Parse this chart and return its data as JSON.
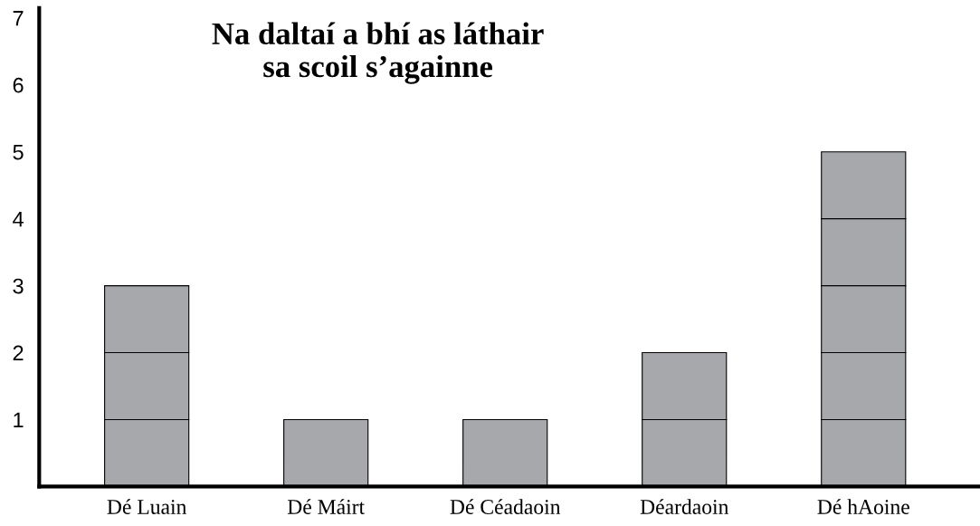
{
  "chart_data": {
    "type": "bar",
    "title": "Na daltaí a bhí as láthair\nsa scoil s’againne",
    "categories": [
      "Dé Luain",
      "Dé Máirt",
      "Dé Céadaoin",
      "Déardaoin",
      "Dé hAoine"
    ],
    "values": [
      3,
      1,
      1,
      2,
      5
    ],
    "color": "#a7a8ac",
    "ylim": [
      0,
      7.15
    ],
    "yticks": [
      1,
      2,
      3,
      4,
      5,
      6,
      7
    ],
    "grid": false,
    "legend": false
  }
}
